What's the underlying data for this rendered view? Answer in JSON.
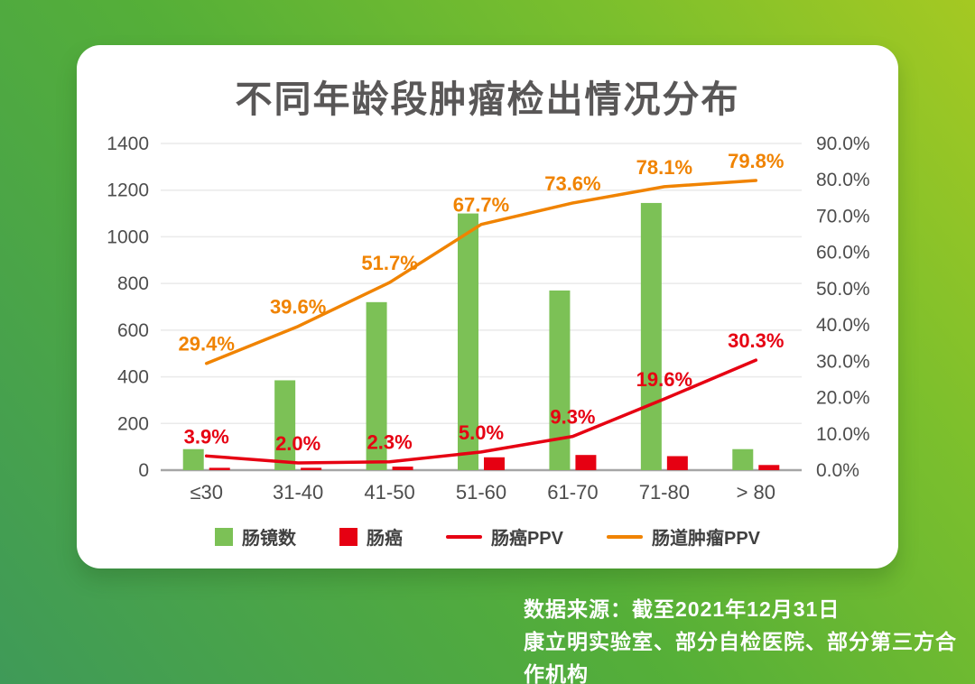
{
  "chart_data": {
    "type": "combo",
    "title": "不同年龄段肿瘤检出情况分布",
    "categories": [
      "≤30",
      "31-40",
      "41-50",
      "51-60",
      "61-70",
      "71-80",
      "> 80"
    ],
    "series": [
      {
        "name": "肠镜数",
        "type": "bar",
        "axis": "left",
        "color": "#7CC156",
        "values": [
          90,
          385,
          720,
          1100,
          770,
          1145,
          90
        ]
      },
      {
        "name": "肠癌",
        "type": "bar",
        "axis": "left",
        "color": "#E60012",
        "values": [
          10,
          10,
          15,
          55,
          65,
          60,
          22
        ]
      },
      {
        "name": "肠癌PPV",
        "type": "line",
        "axis": "right",
        "color": "#E60012",
        "values": [
          3.9,
          2.0,
          2.3,
          5.0,
          9.3,
          19.6,
          30.3
        ],
        "labels": [
          "3.9%",
          "2.0%",
          "2.3%",
          "5.0%",
          "9.3%",
          "19.6%",
          "30.3%"
        ]
      },
      {
        "name": "肠道肿瘤PPV",
        "type": "line",
        "axis": "right",
        "color": "#F08300",
        "values": [
          29.4,
          39.6,
          51.7,
          67.7,
          73.6,
          78.1,
          79.8
        ],
        "labels": [
          "29.4%",
          "39.6%",
          "51.7%",
          "67.7%",
          "73.6%",
          "78.1%",
          "79.8%"
        ]
      }
    ],
    "left_axis": {
      "min": 0,
      "max": 1400,
      "step": 200,
      "ticks": [
        "0",
        "200",
        "400",
        "600",
        "800",
        "1000",
        "1200",
        "1400"
      ]
    },
    "right_axis": {
      "min": 0,
      "max": 90,
      "step": 10,
      "ticks": [
        "0.0%",
        "10.0%",
        "20.0%",
        "30.0%",
        "40.0%",
        "50.0%",
        "60.0%",
        "70.0%",
        "80.0%",
        "90.0%"
      ]
    },
    "grid": true,
    "legend_position": "bottom"
  },
  "footer": {
    "line1": "数据来源：截至2021年12月31日",
    "line2": "康立明实验室、部分自检医院、部分第三方合作机构"
  },
  "colors": {
    "background_start": "#3F9A58",
    "background_end": "#A5C922",
    "card": "#FFFFFF",
    "title_text": "#595757",
    "axis_text": "#4D4D4D",
    "gridline": "#EAEAEA",
    "baseline": "#A6A6A6",
    "bar_green": "#7CC156",
    "red": "#E60012",
    "orange": "#F08300",
    "legend_text": "#404040",
    "footer_text": "#FFFFFF"
  }
}
